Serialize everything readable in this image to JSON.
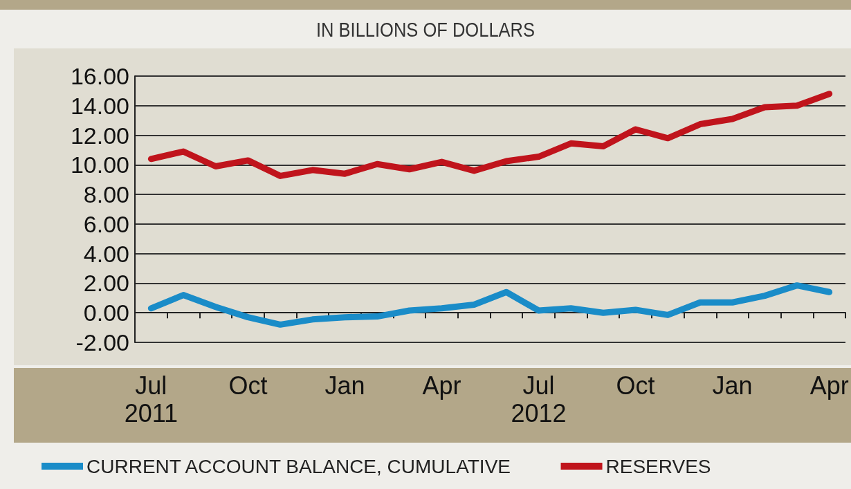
{
  "chart_data": {
    "type": "line",
    "subtitle": "IN BILLIONS OF DOLLARS",
    "categories": [
      "Jul 2011",
      null,
      null,
      "Oct",
      null,
      null,
      "Jan",
      null,
      null,
      "Apr",
      null,
      null,
      "Jul 2012",
      null,
      null,
      "Oct",
      null,
      null,
      "Jan",
      null,
      null,
      "Apr"
    ],
    "series": [
      {
        "name": "CURRENT ACCOUNT BALANCE, CUMULATIVE",
        "color": "#1a8cc8",
        "values": [
          0.3,
          1.2,
          0.4,
          -0.3,
          -0.8,
          -0.45,
          -0.3,
          -0.25,
          0.15,
          0.3,
          0.55,
          1.4,
          0.15,
          0.3,
          0.0,
          0.2,
          -0.15,
          0.7,
          0.7,
          1.15,
          1.85,
          1.4
        ]
      },
      {
        "name": "RESERVES",
        "color": "#c0141c",
        "values": [
          10.4,
          10.9,
          9.9,
          10.3,
          9.25,
          9.65,
          9.4,
          10.05,
          9.7,
          10.2,
          9.6,
          10.25,
          10.55,
          11.45,
          11.25,
          12.4,
          11.8,
          12.75,
          13.1,
          13.9,
          14.0,
          14.8
        ]
      }
    ],
    "ylim": [
      -2,
      16
    ],
    "yticks": [
      {
        "value": -2,
        "label": "-2.00"
      },
      {
        "value": 0,
        "label": "0.00"
      },
      {
        "value": 2,
        "label": "2.00"
      },
      {
        "value": 4,
        "label": "4.00"
      },
      {
        "value": 6,
        "label": "6.00"
      },
      {
        "value": 8,
        "label": "8.00"
      },
      {
        "value": 10,
        "label": "10.00"
      },
      {
        "value": 12,
        "label": "12.00"
      },
      {
        "value": 14,
        "label": "14.00"
      },
      {
        "value": 16,
        "label": "16.00"
      }
    ],
    "grid": "y",
    "legend": "bottom",
    "marker": "none",
    "line_style": "solid"
  }
}
